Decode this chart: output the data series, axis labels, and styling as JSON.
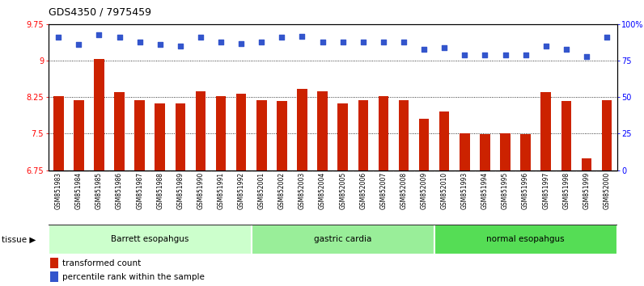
{
  "title": "GDS4350 / 7975459",
  "samples": [
    "GSM851983",
    "GSM851984",
    "GSM851985",
    "GSM851986",
    "GSM851987",
    "GSM851988",
    "GSM851989",
    "GSM851990",
    "GSM851991",
    "GSM851992",
    "GSM852001",
    "GSM852002",
    "GSM852003",
    "GSM852004",
    "GSM852005",
    "GSM852006",
    "GSM852007",
    "GSM852008",
    "GSM852009",
    "GSM852010",
    "GSM851993",
    "GSM851994",
    "GSM851995",
    "GSM851996",
    "GSM851997",
    "GSM851998",
    "GSM851999",
    "GSM852000"
  ],
  "bar_values": [
    8.28,
    8.19,
    9.04,
    8.36,
    8.19,
    8.12,
    8.12,
    8.38,
    8.28,
    8.32,
    8.19,
    8.17,
    8.43,
    8.37,
    8.13,
    8.19,
    8.28,
    8.19,
    7.8,
    7.95,
    7.5,
    7.49,
    7.5,
    7.49,
    8.35,
    8.18,
    7.0,
    8.19
  ],
  "percentile_values": [
    91,
    86,
    93,
    91,
    88,
    86,
    85,
    91,
    88,
    87,
    88,
    91,
    92,
    88,
    88,
    88,
    88,
    88,
    83,
    84,
    79,
    79,
    79,
    79,
    85,
    83,
    78,
    91
  ],
  "groups": [
    {
      "label": "Barrett esopahgus",
      "start": 0,
      "end": 9,
      "color": "#ccffcc"
    },
    {
      "label": "gastric cardia",
      "start": 10,
      "end": 18,
      "color": "#99ee99"
    },
    {
      "label": "normal esopahgus",
      "start": 19,
      "end": 27,
      "color": "#55dd55"
    }
  ],
  "bar_color": "#cc2200",
  "dot_color": "#3355cc",
  "ymin": 6.75,
  "ymax": 9.75,
  "yticks_left": [
    6.75,
    7.5,
    8.25,
    9.0,
    9.75
  ],
  "ytick_labels_left": [
    "6.75",
    "7.5",
    "8.25",
    "9",
    "9.75"
  ],
  "yticks_right": [
    0,
    25,
    50,
    75,
    100
  ],
  "ytick_labels_right": [
    "0",
    "25",
    "50",
    "75",
    "100%"
  ],
  "gridlines": [
    7.5,
    8.25,
    9.0
  ],
  "plot_bg": "#ffffff",
  "xtick_bg": "#cccccc",
  "bar_width": 0.5
}
